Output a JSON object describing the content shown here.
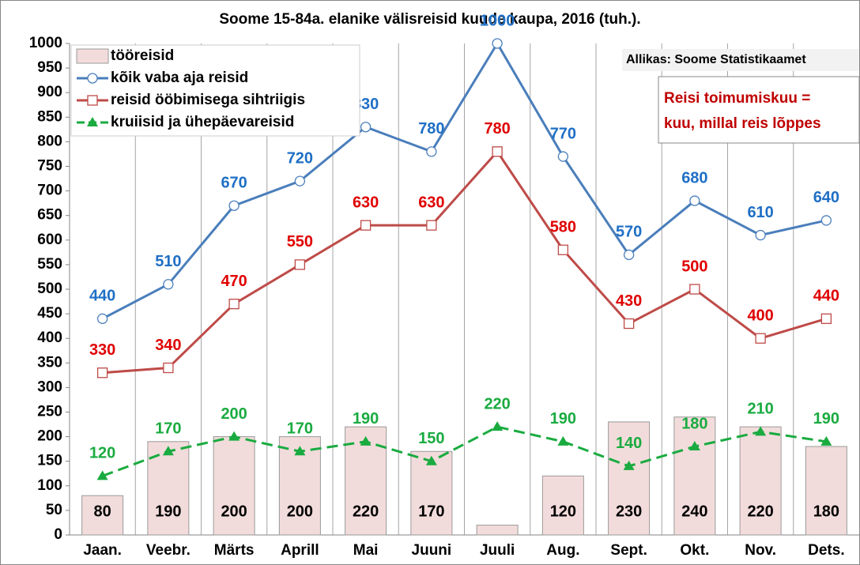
{
  "chart_data": {
    "type": "bar_line",
    "title": "Soome 15-84a. elanike välisreisid kuude kaupa, 2016 (tuh.).",
    "annotations": [
      "Allikas: Soome Statistikaamet",
      "Reisi toimumiskuu =",
      "kuu, millal reis lõppes"
    ],
    "categories": [
      "Jaan.",
      "Veebr.",
      "Märts",
      "Aprill",
      "Mai",
      "Juuni",
      "Juuli",
      "Aug.",
      "Sept.",
      "Okt.",
      "Nov.",
      "Dets."
    ],
    "series": [
      {
        "name": "tööreisid",
        "kind": "bar",
        "color": "#f2dcdb",
        "values": [
          80,
          190,
          200,
          200,
          220,
          170,
          20,
          120,
          230,
          240,
          220,
          180
        ],
        "value_labels": [
          "80",
          "190",
          "200",
          "200",
          "220",
          "170",
          null,
          "120",
          "230",
          "240",
          "220",
          "180"
        ]
      },
      {
        "name": "kõik vaba aja reisid",
        "kind": "line",
        "marker": "circle",
        "color": "#4a7ebb",
        "label_color": "#1f6fc5",
        "values": [
          440,
          510,
          670,
          720,
          830,
          780,
          1000,
          770,
          570,
          680,
          610,
          640
        ]
      },
      {
        "name": "reisid ööbimisega sihtriigis",
        "kind": "line",
        "marker": "square",
        "color": "#be4b48",
        "label_color": "#e00000",
        "values": [
          330,
          340,
          470,
          550,
          630,
          630,
          780,
          580,
          430,
          500,
          400,
          440
        ]
      },
      {
        "name": "kruiisid ja ühepäevareisid",
        "kind": "line",
        "marker": "triangle",
        "dashed": true,
        "color": "#1aab40",
        "label_color": "#1aab40",
        "values": [
          120,
          170,
          200,
          170,
          190,
          150,
          220,
          190,
          140,
          180,
          210,
          190
        ]
      }
    ],
    "ylim": [
      0,
      1000
    ],
    "yticks": [
      0,
      50,
      100,
      150,
      200,
      250,
      300,
      350,
      400,
      450,
      500,
      550,
      600,
      650,
      700,
      750,
      800,
      850,
      900,
      950,
      1000
    ]
  }
}
